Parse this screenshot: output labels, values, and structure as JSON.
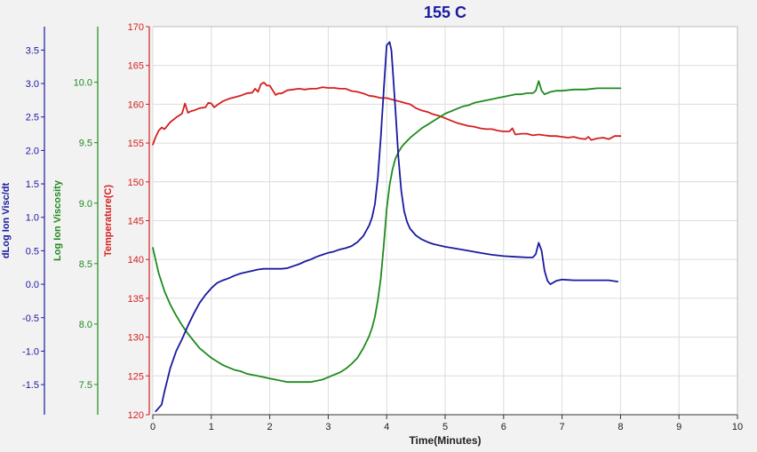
{
  "chart_data": {
    "type": "line",
    "title": "155 C",
    "xlabel": "Time(Minutes)",
    "xlim": [
      0,
      10
    ],
    "x_ticks": [
      "0",
      "1",
      "2",
      "3",
      "4",
      "5",
      "6",
      "7",
      "8",
      "9",
      "10"
    ],
    "grid": true,
    "axes": {
      "dlog": {
        "label": "dLog Ion Visc/dt",
        "ylim": [
          -1.95,
          3.85
        ],
        "ticks": [
          "-1.5",
          "-1.0",
          "-0.5",
          "0.0",
          "0.5",
          "1.0",
          "1.5",
          "2.0",
          "2.5",
          "3.0",
          "3.5"
        ],
        "color": "#1a1aa0"
      },
      "logvisc": {
        "label": "Log Ion Viscosity",
        "ylim": [
          7.25,
          10.46
        ],
        "ticks": [
          "7.5",
          "8.0",
          "8.5",
          "9.0",
          "9.5",
          "10.0"
        ],
        "color": "#1f8a1f"
      },
      "temp": {
        "label": "Temperature(C)",
        "ylim": [
          120,
          170
        ],
        "ticks": [
          "120",
          "125",
          "130",
          "135",
          "140",
          "145",
          "150",
          "155",
          "160",
          "165",
          "170"
        ],
        "color": "#d42020"
      }
    },
    "series": [
      {
        "axis": "temp",
        "color": "#d42020",
        "x": [
          0,
          0.05,
          0.1,
          0.15,
          0.2,
          0.3,
          0.4,
          0.5,
          0.55,
          0.6,
          0.65,
          0.7,
          0.8,
          0.9,
          0.95,
          1.0,
          1.05,
          1.1,
          1.2,
          1.3,
          1.4,
          1.5,
          1.6,
          1.7,
          1.75,
          1.8,
          1.85,
          1.9,
          1.95,
          2.0,
          2.05,
          2.1,
          2.15,
          2.2,
          2.3,
          2.4,
          2.5,
          2.6,
          2.7,
          2.8,
          2.9,
          3.0,
          3.1,
          3.2,
          3.3,
          3.4,
          3.5,
          3.6,
          3.7,
          3.8,
          3.9,
          4.0,
          4.1,
          4.2,
          4.3,
          4.4,
          4.5,
          4.6,
          4.7,
          4.8,
          4.9,
          5.0,
          5.1,
          5.2,
          5.3,
          5.4,
          5.5,
          5.6,
          5.7,
          5.8,
          5.9,
          6.0,
          6.1,
          6.15,
          6.2,
          6.3,
          6.4,
          6.5,
          6.6,
          6.7,
          6.8,
          6.9,
          7.0,
          7.1,
          7.2,
          7.3,
          7.4,
          7.45,
          7.5,
          7.6,
          7.7,
          7.8,
          7.9,
          8.0
        ],
        "values": [
          154.8,
          155.8,
          156.6,
          157.0,
          156.8,
          157.7,
          158.3,
          158.8,
          160.1,
          158.9,
          159.1,
          159.2,
          159.5,
          159.6,
          160.2,
          160.1,
          159.6,
          159.9,
          160.4,
          160.7,
          160.9,
          161.1,
          161.4,
          161.5,
          162.0,
          161.6,
          162.6,
          162.8,
          162.4,
          162.4,
          161.8,
          161.2,
          161.4,
          161.4,
          161.8,
          161.9,
          162.0,
          161.9,
          162.0,
          162.0,
          162.2,
          162.1,
          162.1,
          162.0,
          162.0,
          161.7,
          161.6,
          161.4,
          161.1,
          161.0,
          160.8,
          160.8,
          160.6,
          160.4,
          160.2,
          160.0,
          159.5,
          159.2,
          159.0,
          158.7,
          158.5,
          158.2,
          157.9,
          157.6,
          157.4,
          157.2,
          157.1,
          156.9,
          156.8,
          156.8,
          156.6,
          156.5,
          156.5,
          156.9,
          156.1,
          156.2,
          156.2,
          156.0,
          156.1,
          156.0,
          155.9,
          155.9,
          155.8,
          155.7,
          155.8,
          155.6,
          155.5,
          155.8,
          155.4,
          155.6,
          155.7,
          155.5,
          155.9,
          155.9
        ]
      },
      {
        "axis": "logvisc",
        "color": "#1f8a1f",
        "x": [
          0,
          0.1,
          0.2,
          0.3,
          0.4,
          0.5,
          0.6,
          0.7,
          0.8,
          0.9,
          1.0,
          1.1,
          1.2,
          1.3,
          1.4,
          1.5,
          1.6,
          1.7,
          1.8,
          1.9,
          2.0,
          2.1,
          2.2,
          2.3,
          2.4,
          2.5,
          2.6,
          2.7,
          2.8,
          2.9,
          3.0,
          3.1,
          3.2,
          3.3,
          3.4,
          3.5,
          3.6,
          3.7,
          3.75,
          3.8,
          3.85,
          3.9,
          3.95,
          4.0,
          4.05,
          4.1,
          4.15,
          4.2,
          4.25,
          4.3,
          4.4,
          4.5,
          4.6,
          4.7,
          4.8,
          4.9,
          5.0,
          5.1,
          5.2,
          5.3,
          5.4,
          5.5,
          5.6,
          5.7,
          5.8,
          5.9,
          6.0,
          6.1,
          6.2,
          6.3,
          6.4,
          6.5,
          6.55,
          6.6,
          6.65,
          6.7,
          6.8,
          6.9,
          7.0,
          7.2,
          7.4,
          7.6,
          7.8,
          8.0
        ],
        "values": [
          8.63,
          8.42,
          8.27,
          8.16,
          8.07,
          7.99,
          7.92,
          7.86,
          7.8,
          7.76,
          7.72,
          7.69,
          7.66,
          7.64,
          7.62,
          7.61,
          7.59,
          7.58,
          7.57,
          7.56,
          7.55,
          7.54,
          7.53,
          7.52,
          7.52,
          7.52,
          7.52,
          7.52,
          7.53,
          7.54,
          7.56,
          7.58,
          7.6,
          7.63,
          7.67,
          7.72,
          7.8,
          7.9,
          7.97,
          8.06,
          8.2,
          8.38,
          8.65,
          8.95,
          9.15,
          9.28,
          9.37,
          9.42,
          9.46,
          9.49,
          9.54,
          9.58,
          9.62,
          9.65,
          9.68,
          9.71,
          9.74,
          9.76,
          9.78,
          9.8,
          9.81,
          9.83,
          9.84,
          9.85,
          9.86,
          9.87,
          9.88,
          9.89,
          9.9,
          9.9,
          9.91,
          9.91,
          9.93,
          10.01,
          9.93,
          9.9,
          9.92,
          9.93,
          9.93,
          9.94,
          9.94,
          9.95,
          9.95,
          9.95
        ]
      },
      {
        "axis": "dlog",
        "color": "#1a1aa0",
        "x": [
          0.05,
          0.15,
          0.2,
          0.3,
          0.4,
          0.5,
          0.6,
          0.7,
          0.8,
          0.9,
          1.0,
          1.1,
          1.2,
          1.3,
          1.4,
          1.5,
          1.6,
          1.7,
          1.8,
          1.9,
          2.0,
          2.1,
          2.2,
          2.3,
          2.4,
          2.5,
          2.6,
          2.7,
          2.8,
          2.9,
          3.0,
          3.1,
          3.2,
          3.3,
          3.4,
          3.5,
          3.6,
          3.7,
          3.75,
          3.8,
          3.85,
          3.9,
          3.95,
          4.0,
          4.05,
          4.08,
          4.1,
          4.15,
          4.2,
          4.25,
          4.3,
          4.35,
          4.4,
          4.5,
          4.6,
          4.7,
          4.8,
          4.9,
          5.0,
          5.2,
          5.4,
          5.6,
          5.8,
          6.0,
          6.2,
          6.4,
          6.5,
          6.55,
          6.6,
          6.65,
          6.7,
          6.75,
          6.8,
          6.9,
          7.0,
          7.2,
          7.4,
          7.6,
          7.8,
          7.95
        ],
        "values": [
          -1.9,
          -1.8,
          -1.6,
          -1.25,
          -1.0,
          -0.82,
          -0.62,
          -0.44,
          -0.28,
          -0.16,
          -0.06,
          0.02,
          0.06,
          0.09,
          0.13,
          0.16,
          0.18,
          0.2,
          0.22,
          0.23,
          0.23,
          0.23,
          0.23,
          0.24,
          0.27,
          0.3,
          0.34,
          0.37,
          0.41,
          0.44,
          0.47,
          0.49,
          0.52,
          0.54,
          0.57,
          0.63,
          0.72,
          0.88,
          1.0,
          1.2,
          1.6,
          2.2,
          2.9,
          3.57,
          3.62,
          3.5,
          3.25,
          2.6,
          1.9,
          1.4,
          1.09,
          0.93,
          0.83,
          0.73,
          0.67,
          0.63,
          0.6,
          0.58,
          0.56,
          0.53,
          0.5,
          0.47,
          0.44,
          0.42,
          0.41,
          0.4,
          0.4,
          0.45,
          0.62,
          0.5,
          0.2,
          0.05,
          0.0,
          0.05,
          0.07,
          0.06,
          0.06,
          0.06,
          0.06,
          0.04
        ]
      }
    ]
  }
}
